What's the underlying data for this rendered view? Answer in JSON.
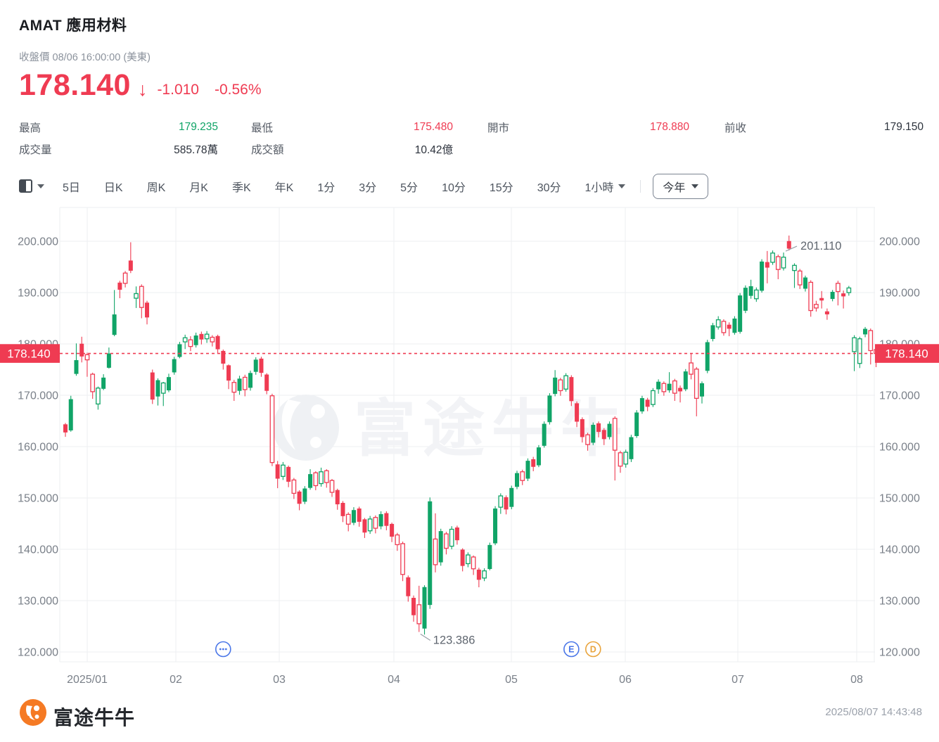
{
  "header": {
    "title": "AMAT 應用材料",
    "subtitle": "收盤價 08/06 16:00:00 (美東)",
    "price": "178.140",
    "down_arrow": "↓",
    "change": "-1.010",
    "change_pct": "-0.56%",
    "stats": [
      {
        "label": "最高",
        "value": "179.235",
        "tone": "up"
      },
      {
        "label": "最低",
        "value": "175.480",
        "tone": "down"
      },
      {
        "label": "開市",
        "value": "178.880",
        "tone": "down"
      },
      {
        "label": "前收",
        "value": "179.150",
        "tone": "neutral"
      },
      {
        "label": "成交量",
        "value": "585.78萬",
        "tone": "neutral"
      },
      {
        "label": "成交額",
        "value": "10.42億",
        "tone": "neutral"
      }
    ]
  },
  "toolbar": {
    "tabs": [
      "5日",
      "日K",
      "周K",
      "月K",
      "季K",
      "年K",
      "1分",
      "3分",
      "5分",
      "10分",
      "15分",
      "30分"
    ],
    "hour_tab": "1小時",
    "range_button": "今年"
  },
  "chart_data": {
    "type": "candlestick",
    "period": "今年 (YTD 2025) 日K",
    "x_labels": [
      "2025/01",
      "02",
      "03",
      "04",
      "05",
      "06",
      "07",
      "08"
    ],
    "y_ticks": [
      "200.000",
      "190.000",
      "180.000",
      "170.000",
      "160.000",
      "150.000",
      "140.000",
      "130.000",
      "120.000"
    ],
    "ylim": [
      120,
      200
    ],
    "price_line": {
      "value": 178.14,
      "label": "178.140"
    },
    "annotations": [
      {
        "type": "high",
        "text": "201.110",
        "candle_index": 132
      },
      {
        "type": "low",
        "text": "123.386",
        "candle_index": 65
      }
    ],
    "event_markers": [
      {
        "glyph": "...",
        "name": "more-events",
        "color": "#4a76e8",
        "candle_index": 29
      },
      {
        "glyph": "E",
        "name": "earnings-event",
        "color": "#4a76e8",
        "candle_index": 93
      },
      {
        "glyph": "D",
        "name": "dividend-event",
        "color": "#e9a43c",
        "candle_index": 97
      }
    ],
    "watermark": "富途牛牛",
    "candles_format": "[open, close, low, high, style] — style: g=green solid, G=green hollow, r=red solid, R=red hollow",
    "candles": [
      [
        164.3,
        162.8,
        161.9,
        164.6,
        "r"
      ],
      [
        163.2,
        169.2,
        162.9,
        169.9,
        "g"
      ],
      [
        174.2,
        176.8,
        173.8,
        180.1,
        "g"
      ],
      [
        180.0,
        177.6,
        176.4,
        181.4,
        "r"
      ],
      [
        176.9,
        177.9,
        173.6,
        178.3,
        "R"
      ],
      [
        174.1,
        170.7,
        169.3,
        174.4,
        "R"
      ],
      [
        168.3,
        171.4,
        167.2,
        171.7,
        "G"
      ],
      [
        171.3,
        173.4,
        171.0,
        174.1,
        "g"
      ],
      [
        175.4,
        178.1,
        175.2,
        179.3,
        "g"
      ],
      [
        181.8,
        185.7,
        181.5,
        190.5,
        "g"
      ],
      [
        191.9,
        190.6,
        188.9,
        192.3,
        "r"
      ],
      [
        191.8,
        193.8,
        191.0,
        194.2,
        "R"
      ],
      [
        196.2,
        194.3,
        193.8,
        199.8,
        "r"
      ],
      [
        188.9,
        189.8,
        187.0,
        191.2,
        "G"
      ],
      [
        191.2,
        187.1,
        185.0,
        191.6,
        "R"
      ],
      [
        188.0,
        185.2,
        183.8,
        188.4,
        "r"
      ],
      [
        174.4,
        169.2,
        168.3,
        175.0,
        "r"
      ],
      [
        169.8,
        172.9,
        168.0,
        173.3,
        "g"
      ],
      [
        172.4,
        170.4,
        167.9,
        172.6,
        "G"
      ],
      [
        171.0,
        173.5,
        170.6,
        174.2,
        "g"
      ],
      [
        174.5,
        177.0,
        174.0,
        177.5,
        "g"
      ],
      [
        177.5,
        179.9,
        177.2,
        180.4,
        "g"
      ],
      [
        180.4,
        181.2,
        179.0,
        181.8,
        "G"
      ],
      [
        180.8,
        179.5,
        178.6,
        181.5,
        "R"
      ],
      [
        179.8,
        181.6,
        179.3,
        182.2,
        "g"
      ],
      [
        181.9,
        180.9,
        179.9,
        182.4,
        "r"
      ],
      [
        181.0,
        181.9,
        180.2,
        182.5,
        "G"
      ],
      [
        181.3,
        180.4,
        179.5,
        181.7,
        "R"
      ],
      [
        181.5,
        179.0,
        178.2,
        181.8,
        "r"
      ],
      [
        178.6,
        176.2,
        175.0,
        178.9,
        "r"
      ],
      [
        175.8,
        172.9,
        171.2,
        176.0,
        "r"
      ],
      [
        172.5,
        170.6,
        168.9,
        173.0,
        "R"
      ],
      [
        170.9,
        173.2,
        170.1,
        173.8,
        "g"
      ],
      [
        173.5,
        171.1,
        169.8,
        174.0,
        "R"
      ],
      [
        171.5,
        174.3,
        170.9,
        174.8,
        "g"
      ],
      [
        174.6,
        176.9,
        174.0,
        177.4,
        "g"
      ],
      [
        177.1,
        174.4,
        173.6,
        177.5,
        "r"
      ],
      [
        174.0,
        170.9,
        170.2,
        174.3,
        "r"
      ],
      [
        169.9,
        156.9,
        156.2,
        170.3,
        "R"
      ],
      [
        156.5,
        153.8,
        151.9,
        157.2,
        "r"
      ],
      [
        154.2,
        156.4,
        153.5,
        157.0,
        "G"
      ],
      [
        156.0,
        153.2,
        152.1,
        156.3,
        "r"
      ],
      [
        153.5,
        150.9,
        149.8,
        153.9,
        "R"
      ],
      [
        151.2,
        148.9,
        147.6,
        151.5,
        "r"
      ],
      [
        149.3,
        151.8,
        148.8,
        152.3,
        "g"
      ],
      [
        152.0,
        154.6,
        151.6,
        155.6,
        "g"
      ],
      [
        154.9,
        152.4,
        151.5,
        155.2,
        "R"
      ],
      [
        152.8,
        155.1,
        152.2,
        155.9,
        "G"
      ],
      [
        155.3,
        153.0,
        152.0,
        155.6,
        "R"
      ],
      [
        153.4,
        151.1,
        150.2,
        153.7,
        "R"
      ],
      [
        151.5,
        148.8,
        147.7,
        151.8,
        "r"
      ],
      [
        149.0,
        146.5,
        145.3,
        149.4,
        "r"
      ],
      [
        146.8,
        144.9,
        143.5,
        147.2,
        "R"
      ],
      [
        145.2,
        147.6,
        144.7,
        148.2,
        "g"
      ],
      [
        147.9,
        145.4,
        144.4,
        148.3,
        "r"
      ],
      [
        145.8,
        143.3,
        142.2,
        146.1,
        "r"
      ],
      [
        143.6,
        145.9,
        143.0,
        146.5,
        "G"
      ],
      [
        146.2,
        144.1,
        143.1,
        146.6,
        "R"
      ],
      [
        144.5,
        146.8,
        143.9,
        147.4,
        "g"
      ],
      [
        147.0,
        144.6,
        143.7,
        147.4,
        "r"
      ],
      [
        144.9,
        142.5,
        141.4,
        145.2,
        "r"
      ],
      [
        142.8,
        140.9,
        139.7,
        143.2,
        "R"
      ],
      [
        141.1,
        135.1,
        133.8,
        141.5,
        "R"
      ],
      [
        134.5,
        130.9,
        129.8,
        134.9,
        "r"
      ],
      [
        130.5,
        127.2,
        125.9,
        131.0,
        "r"
      ],
      [
        129.2,
        125.5,
        123.9,
        132.9,
        "R"
      ],
      [
        124.6,
        132.6,
        123.386,
        133.0,
        "g"
      ],
      [
        129.2,
        149.3,
        128.4,
        150.1,
        "g"
      ],
      [
        142.0,
        137.0,
        135.5,
        147.0,
        "R"
      ],
      [
        137.5,
        143.5,
        136.8,
        144.0,
        "g"
      ],
      [
        143.0,
        140.2,
        139.0,
        143.4,
        "R"
      ],
      [
        140.6,
        143.9,
        140.0,
        144.5,
        "G"
      ],
      [
        144.2,
        141.8,
        140.9,
        144.6,
        "r"
      ],
      [
        139.9,
        136.8,
        135.7,
        140.2,
        "r"
      ],
      [
        137.2,
        138.9,
        136.5,
        139.4,
        "G"
      ],
      [
        138.5,
        136.2,
        135.0,
        138.8,
        "R"
      ],
      [
        136.0,
        134.1,
        132.6,
        136.4,
        "r"
      ],
      [
        134.4,
        135.8,
        133.8,
        136.3,
        "G"
      ],
      [
        136.2,
        140.8,
        135.9,
        141.3,
        "g"
      ],
      [
        141.2,
        147.9,
        140.8,
        148.4,
        "g"
      ],
      [
        148.2,
        150.4,
        146.9,
        150.9,
        "G"
      ],
      [
        150.1,
        147.8,
        146.8,
        150.5,
        "r"
      ],
      [
        148.3,
        151.9,
        147.8,
        152.4,
        "g"
      ],
      [
        152.2,
        154.8,
        151.7,
        155.3,
        "g"
      ],
      [
        155.1,
        153.4,
        152.5,
        155.5,
        "R"
      ],
      [
        153.8,
        157.2,
        153.3,
        157.7,
        "g"
      ],
      [
        157.5,
        156.1,
        155.2,
        158.0,
        "r"
      ],
      [
        156.4,
        159.8,
        156.0,
        160.3,
        "g"
      ],
      [
        160.2,
        164.4,
        159.8,
        164.9,
        "g"
      ],
      [
        164.8,
        169.9,
        164.3,
        170.4,
        "g"
      ],
      [
        170.3,
        173.4,
        169.8,
        174.9,
        "g"
      ],
      [
        173.0,
        170.9,
        169.9,
        173.4,
        "R"
      ],
      [
        171.2,
        173.8,
        170.7,
        174.3,
        "G"
      ],
      [
        173.5,
        168.9,
        167.9,
        173.9,
        "r"
      ],
      [
        168.4,
        164.9,
        163.8,
        168.8,
        "r"
      ],
      [
        165.3,
        161.9,
        160.8,
        165.7,
        "r"
      ],
      [
        162.3,
        160.4,
        159.2,
        162.7,
        "R"
      ],
      [
        160.8,
        164.2,
        160.3,
        164.7,
        "g"
      ],
      [
        164.5,
        162.9,
        161.8,
        164.9,
        "r"
      ],
      [
        163.2,
        161.5,
        160.3,
        163.6,
        "r"
      ],
      [
        161.9,
        164.4,
        161.4,
        164.9,
        "g"
      ],
      [
        165.5,
        159.3,
        153.4,
        165.9,
        "R"
      ],
      [
        158.8,
        156.2,
        154.9,
        159.2,
        "R"
      ],
      [
        156.6,
        158.9,
        155.9,
        159.4,
        "G"
      ],
      [
        157.6,
        161.8,
        157.0,
        162.3,
        "g"
      ],
      [
        162.1,
        166.6,
        161.7,
        167.1,
        "g"
      ],
      [
        166.9,
        169.4,
        166.4,
        169.9,
        "g"
      ],
      [
        169.1,
        167.8,
        166.9,
        169.5,
        "r"
      ],
      [
        168.2,
        170.9,
        167.7,
        171.4,
        "G"
      ],
      [
        171.2,
        172.6,
        170.3,
        173.1,
        "g"
      ],
      [
        172.3,
        170.7,
        169.9,
        172.7,
        "R"
      ],
      [
        171.0,
        172.2,
        170.5,
        174.5,
        "g"
      ],
      [
        172.8,
        170.4,
        168.9,
        173.2,
        "R"
      ],
      [
        171.4,
        170.8,
        168.6,
        171.9,
        "r"
      ],
      [
        171.2,
        174.6,
        170.8,
        175.1,
        "g"
      ],
      [
        176.3,
        174.1,
        173.1,
        178.2,
        "R"
      ],
      [
        175.1,
        169.4,
        165.9,
        175.5,
        "R"
      ],
      [
        169.8,
        172.3,
        168.4,
        172.7,
        "g"
      ],
      [
        174.8,
        180.3,
        174.3,
        180.8,
        "g"
      ],
      [
        181.0,
        183.6,
        180.5,
        184.1,
        "g"
      ],
      [
        183.3,
        184.7,
        182.8,
        185.4,
        "G"
      ],
      [
        184.4,
        182.2,
        181.6,
        184.8,
        "R"
      ],
      [
        183.7,
        183.0,
        181.5,
        184.2,
        "r"
      ],
      [
        182.2,
        184.9,
        181.8,
        185.4,
        "g"
      ],
      [
        182.4,
        189.4,
        182.0,
        189.9,
        "g"
      ],
      [
        186.5,
        190.9,
        186.0,
        191.4,
        "g"
      ],
      [
        189.4,
        191.2,
        188.8,
        192.5,
        "g"
      ],
      [
        188.8,
        190.5,
        188.2,
        191.0,
        "G"
      ],
      [
        190.4,
        196.0,
        190.0,
        196.5,
        "g"
      ],
      [
        195.9,
        194.9,
        191.8,
        198.1,
        "r"
      ],
      [
        195.9,
        197.7,
        195.4,
        198.2,
        "G"
      ],
      [
        197.0,
        194.5,
        192.6,
        197.4,
        "R"
      ],
      [
        194.8,
        196.9,
        194.3,
        197.8,
        "G"
      ],
      [
        200.0,
        198.6,
        198.2,
        201.11,
        "r"
      ],
      [
        194.3,
        195.3,
        190.9,
        195.7,
        "G"
      ],
      [
        194.2,
        191.5,
        190.7,
        194.6,
        "R"
      ],
      [
        190.8,
        192.9,
        190.2,
        193.3,
        "g"
      ],
      [
        192.0,
        186.5,
        185.3,
        192.4,
        "R"
      ],
      [
        187.7,
        187.0,
        186.3,
        188.4,
        "R"
      ],
      [
        188.9,
        188.5,
        186.9,
        190.3,
        "r"
      ],
      [
        186.3,
        185.8,
        184.7,
        186.9,
        "r"
      ],
      [
        188.8,
        190.1,
        188.3,
        190.5,
        "g"
      ],
      [
        191.8,
        190.2,
        187.5,
        192.3,
        "R"
      ],
      [
        189.8,
        189.3,
        186.9,
        190.4,
        "r"
      ],
      [
        190.0,
        190.9,
        189.4,
        191.3,
        "G"
      ],
      [
        178.5,
        181.2,
        174.7,
        181.7,
        "G"
      ],
      [
        176.2,
        181.0,
        175.3,
        181.4,
        "G"
      ],
      [
        181.9,
        182.9,
        181.3,
        183.3,
        "g"
      ],
      [
        182.6,
        178.7,
        176.0,
        183.0,
        "R"
      ],
      [
        178.88,
        178.14,
        175.48,
        179.235,
        "R"
      ]
    ]
  },
  "footer": {
    "brand": "富途牛牛",
    "timestamp": "2025/08/07 14:43:48"
  },
  "colors": {
    "up": "#10a467",
    "down": "#ef3b52",
    "price_tag_bg": "#ef3b52",
    "grid": "#edeff2",
    "axis_text": "#7a8089",
    "annotation_text": "#5f666f",
    "marker_blue": "#4a76e8",
    "marker_orange": "#e9a43c",
    "watermark": "#f2f3f6",
    "brand_orange": "#f57a24"
  }
}
